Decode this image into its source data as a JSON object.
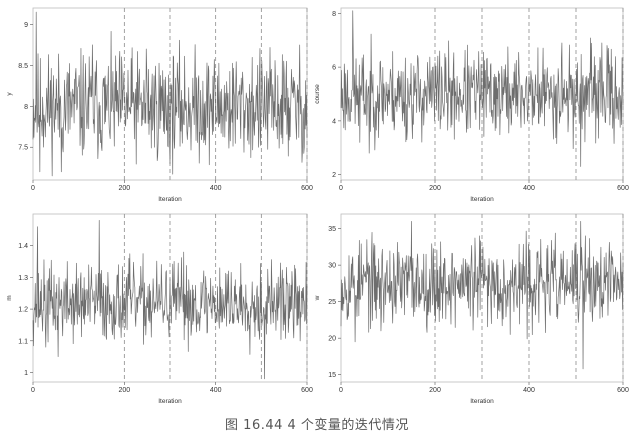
{
  "caption": "图 16.44   4 个变量的迭代情况",
  "colors": {
    "trace": "#6d6d6d",
    "frame": "#bdbdbd",
    "vline": "#8c8c8c"
  },
  "chart_data": [
    {
      "type": "line",
      "ylabel": "y",
      "xlabel": "Iteration",
      "xlim": [
        0,
        600
      ],
      "ylim": [
        7.1,
        9.2
      ],
      "xticks": [
        0,
        200,
        400,
        600
      ],
      "yticks": [
        7.5,
        8.0,
        8.5,
        9.0
      ],
      "vlines": [
        200,
        300,
        400,
        500,
        600
      ],
      "series": [
        {
          "center": 8.0,
          "spread": 0.32,
          "min": 7.15,
          "max": 9.15,
          "seed": 11,
          "spikes": [
            [
              7,
              9.15
            ],
            [
              15,
              7.2
            ],
            [
              62,
              7.2
            ],
            [
              130,
              8.75
            ],
            [
              248,
              8.7
            ],
            [
              300,
              7.3
            ],
            [
              555,
              8.55
            ],
            [
              590,
              7.45
            ]
          ]
        }
      ]
    },
    {
      "type": "line",
      "ylabel": "course",
      "xlabel": "Iteration",
      "xlim": [
        0,
        600
      ],
      "ylim": [
        1.8,
        8.2
      ],
      "xticks": [
        0,
        200,
        400,
        600
      ],
      "yticks": [
        2,
        4,
        6,
        8
      ],
      "vlines": [
        200,
        300,
        400,
        500,
        600
      ],
      "series": [
        {
          "center": 5.0,
          "spread": 0.8,
          "min": 2.1,
          "max": 8.1,
          "seed": 23,
          "spikes": [
            [
              25,
              8.1
            ],
            [
              40,
              3.2
            ],
            [
              60,
              2.8
            ],
            [
              140,
              3.3
            ],
            [
              210,
              6.6
            ],
            [
              470,
              6.9
            ],
            [
              510,
              2.3
            ],
            [
              555,
              6.9
            ]
          ]
        }
      ]
    },
    {
      "type": "line",
      "ylabel": "m",
      "xlabel": "Iteration",
      "xlim": [
        0,
        600
      ],
      "ylim": [
        0.97,
        1.5
      ],
      "xticks": [
        0,
        200,
        400,
        600
      ],
      "yticks": [
        1.0,
        1.1,
        1.2,
        1.3,
        1.4
      ],
      "vlines": [
        200,
        300,
        400,
        500,
        600
      ],
      "series": [
        {
          "center": 1.22,
          "spread": 0.06,
          "min": 0.98,
          "max": 1.48,
          "seed": 37,
          "spikes": [
            [
              10,
              1.46
            ],
            [
              28,
              1.08
            ],
            [
              55,
              1.05
            ],
            [
              145,
              1.48
            ],
            [
              330,
              1.38
            ],
            [
              507,
              0.98
            ],
            [
              210,
              1.36
            ]
          ]
        }
      ]
    },
    {
      "type": "line",
      "ylabel": "w",
      "xlabel": "Iteration",
      "xlim": [
        0,
        600
      ],
      "ylim": [
        14,
        37
      ],
      "xticks": [
        0,
        200,
        400,
        600
      ],
      "yticks": [
        15,
        20,
        25,
        30,
        35
      ],
      "vlines": [
        200,
        300,
        400,
        500,
        600
      ],
      "series": [
        {
          "center": 27.5,
          "spread": 2.8,
          "min": 15.5,
          "max": 36.5,
          "seed": 53,
          "spikes": [
            [
              30,
              19.5
            ],
            [
              55,
              33.5
            ],
            [
              85,
              21
            ],
            [
              150,
              36
            ],
            [
              295,
              34
            ],
            [
              510,
              36
            ],
            [
              515,
              15.8
            ],
            [
              520,
              34
            ],
            [
              360,
              20.5
            ]
          ]
        }
      ]
    }
  ]
}
